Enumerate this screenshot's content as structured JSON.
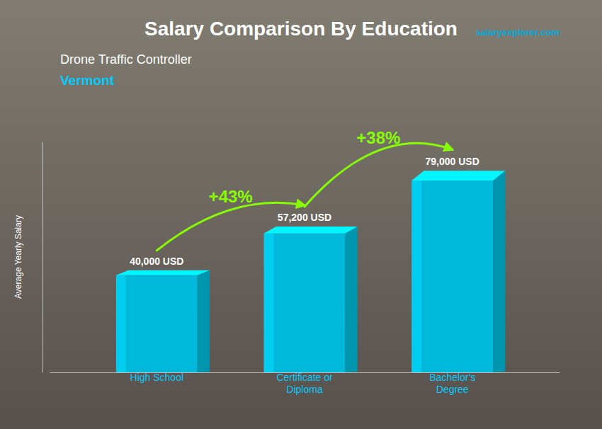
{
  "chart_data": {
    "type": "bar",
    "title": "Salary Comparison By Education",
    "subtitle": "Drone Traffic Controller",
    "ylabel": "Average Yearly Salary",
    "categories": [
      "High School",
      "Certificate or\nDiploma",
      "Bachelor's\nDegree"
    ],
    "values": [
      40000,
      57200,
      79000
    ],
    "value_labels": [
      "40,000 USD",
      "57,200 USD",
      "79,000 USD"
    ],
    "data_labels": true,
    "color": "#00b8d9",
    "ylim": [
      0,
      95000
    ],
    "tick_labels": "x",
    "annotations": [
      "+43%",
      "+38%",
      "Vermont",
      "salaryexplorer.com"
    ]
  }
}
